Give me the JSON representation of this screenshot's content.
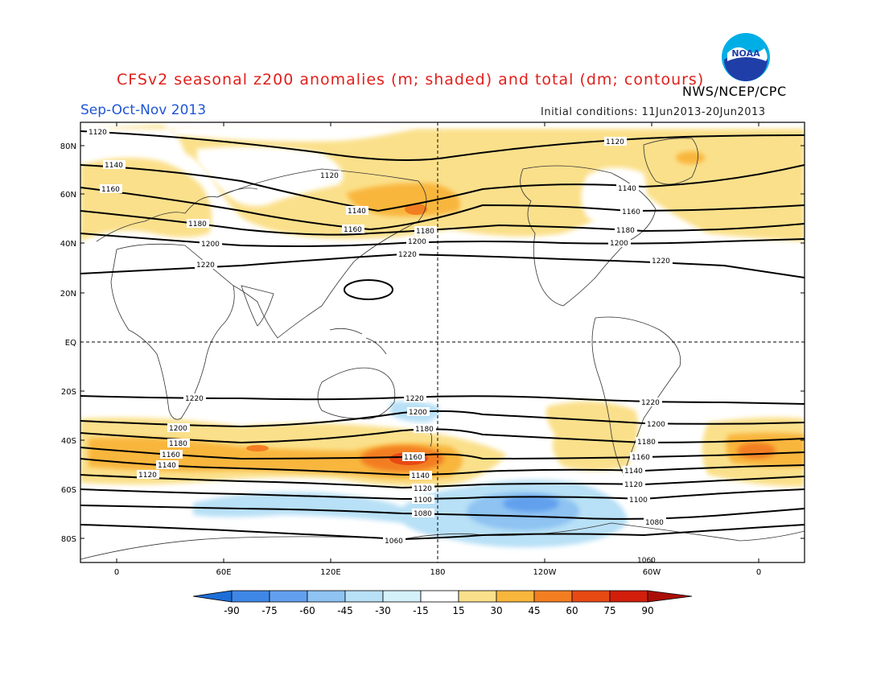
{
  "header": {
    "title": "CFSv2 seasonal z200 anomalies (m; shaded) and total (dm; contours)",
    "agency": "NWS/NCEP/CPC",
    "season": "Sep-Oct-Nov 2013",
    "initial_conditions": "Initial conditions: 11Jun2013-20Jun2013",
    "logo_text": "NOAA"
  },
  "axes": {
    "lat_labels": [
      "80N",
      "60N",
      "40N",
      "20N",
      "EQ",
      "20S",
      "40S",
      "60S",
      "80S"
    ],
    "lon_labels": [
      "0",
      "60E",
      "120E",
      "180",
      "120W",
      "60W",
      "0"
    ]
  },
  "contours": {
    "label_values": [
      "1060",
      "1080",
      "1100",
      "1120",
      "1140",
      "1160",
      "1180",
      "1200",
      "1220"
    ]
  },
  "colorbar": {
    "levels": [
      "-90",
      "-75",
      "-60",
      "-45",
      "-30",
      "-15",
      "15",
      "30",
      "45",
      "60",
      "75",
      "90"
    ],
    "colors": [
      "#1e6ed8",
      "#3f87e6",
      "#62a0ee",
      "#8ec3f2",
      "#b8e0f6",
      "#ffffff",
      "#fbe08b",
      "#f9b63c",
      "#f37e21",
      "#e84a14",
      "#d11f0c",
      "#aa0f07"
    ]
  },
  "anomaly_colors": {
    "pale_yellow": "#fbe08b",
    "orange": "#f9b63c",
    "dark_orange": "#f37e21",
    "red": "#e84a14",
    "light_blue": "#b8e0f6",
    "mid_blue": "#8ec3f2",
    "blue": "#62a0ee"
  }
}
